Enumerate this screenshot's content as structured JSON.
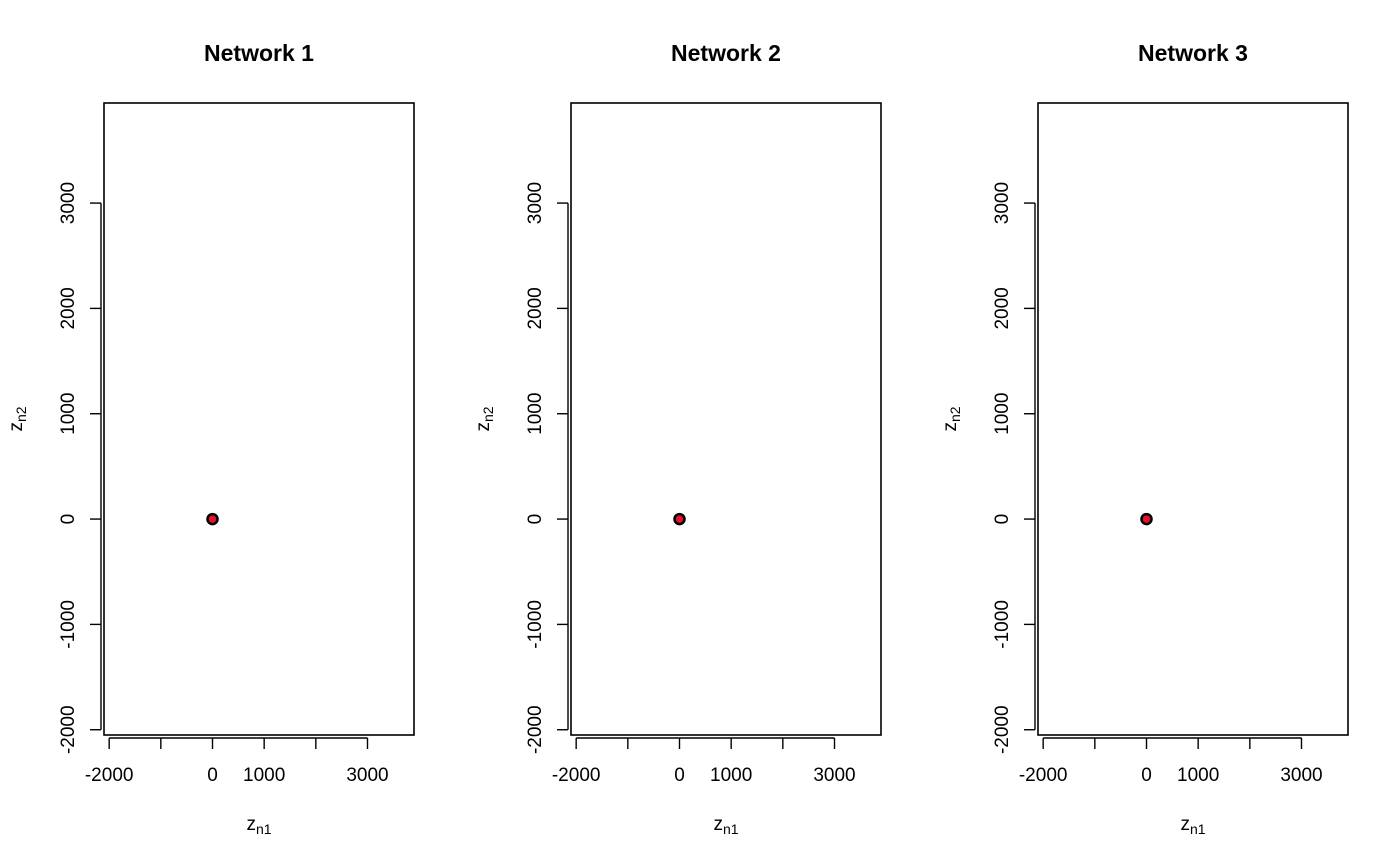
{
  "chart_data": [
    {
      "type": "scatter",
      "title": "Network 1",
      "xlabel": {
        "base": "z",
        "subscript": "n1"
      },
      "ylabel": {
        "base": "z",
        "subscript": "n2"
      },
      "xlim": [
        -2100,
        3900
      ],
      "ylim": [
        -2050,
        3950
      ],
      "x_ticks": [
        -2000,
        -1000,
        0,
        1000,
        2000,
        3000
      ],
      "x_tick_labels": [
        "-2000",
        "",
        "0",
        "1000",
        "",
        "3000"
      ],
      "y_ticks": [
        -2000,
        -1000,
        0,
        1000,
        2000,
        3000
      ],
      "y_tick_labels": [
        "-2000",
        "-1000",
        "0",
        "1000",
        "2000",
        "3000"
      ],
      "points": [
        {
          "x": 0,
          "y": 0
        }
      ],
      "point_fill": "#e8102a",
      "point_stroke": "#000000",
      "grid": false
    },
    {
      "type": "scatter",
      "title": "Network 2",
      "xlabel": {
        "base": "z",
        "subscript": "n1"
      },
      "ylabel": {
        "base": "z",
        "subscript": "n2"
      },
      "xlim": [
        -2100,
        3900
      ],
      "ylim": [
        -2050,
        3950
      ],
      "x_ticks": [
        -2000,
        -1000,
        0,
        1000,
        2000,
        3000
      ],
      "x_tick_labels": [
        "-2000",
        "",
        "0",
        "1000",
        "",
        "3000"
      ],
      "y_ticks": [
        -2000,
        -1000,
        0,
        1000,
        2000,
        3000
      ],
      "y_tick_labels": [
        "-2000",
        "-1000",
        "0",
        "1000",
        "2000",
        "3000"
      ],
      "points": [
        {
          "x": 0,
          "y": 0
        }
      ],
      "point_fill": "#e8102a",
      "point_stroke": "#000000",
      "grid": false
    },
    {
      "type": "scatter",
      "title": "Network 3",
      "xlabel": {
        "base": "z",
        "subscript": "n1"
      },
      "ylabel": {
        "base": "z",
        "subscript": "n2"
      },
      "xlim": [
        -2100,
        3900
      ],
      "ylim": [
        -2050,
        3950
      ],
      "x_ticks": [
        -2000,
        -1000,
        0,
        1000,
        2000,
        3000
      ],
      "x_tick_labels": [
        "-2000",
        "",
        "0",
        "1000",
        "",
        "3000"
      ],
      "y_ticks": [
        -2000,
        -1000,
        0,
        1000,
        2000,
        3000
      ],
      "y_tick_labels": [
        "-2000",
        "-1000",
        "0",
        "1000",
        "2000",
        "3000"
      ],
      "points": [
        {
          "x": 0,
          "y": 0
        }
      ],
      "point_fill": "#e8102a",
      "point_stroke": "#000000",
      "grid": false
    }
  ]
}
